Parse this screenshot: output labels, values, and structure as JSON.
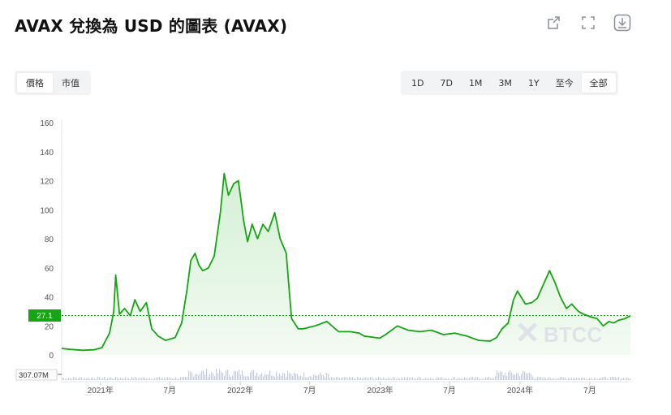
{
  "header": {
    "title": "AVAX 兌換為 USD 的圖表 (AVAX)",
    "icons": [
      "share-icon",
      "fullscreen-icon",
      "download-icon"
    ]
  },
  "view_toggle": {
    "items": [
      "價格",
      "市值"
    ],
    "active": "價格"
  },
  "range_tabs": {
    "items": [
      "1D",
      "7D",
      "1M",
      "3M",
      "1Y",
      "至今",
      "全部"
    ],
    "active": "全部"
  },
  "price_label": "27.1",
  "volume_label": "307.07M",
  "watermark": "BTCC",
  "colors": {
    "line": "#16a514",
    "fill": "#cfeecf",
    "label_bg": "#16a514",
    "volume": "#c8ccd4",
    "dotted": "#16a514"
  },
  "chart_data": {
    "type": "area",
    "title": "",
    "xlabel": "",
    "ylabel": "",
    "ylim": [
      0,
      160
    ],
    "yticks": [
      0,
      20,
      40,
      60,
      80,
      100,
      120,
      140,
      160
    ],
    "xtick_labels": [
      {
        "date": "2021-01",
        "label": "2021年"
      },
      {
        "date": "2021-07",
        "label": "7月"
      },
      {
        "date": "2022-01",
        "label": "2022年"
      },
      {
        "date": "2022-07",
        "label": "7月"
      },
      {
        "date": "2023-01",
        "label": "2023年"
      },
      {
        "date": "2023-07",
        "label": "7月"
      },
      {
        "date": "2024-01",
        "label": "2024年"
      },
      {
        "date": "2024-07",
        "label": "7月"
      }
    ],
    "xrange": [
      "2020-09-22",
      "2024-10-15"
    ],
    "current_value": 27.1,
    "series": [
      {
        "x": [
          "2020-09-22",
          "2020-10-15",
          "2020-11-15",
          "2020-12-15",
          "2021-01-05",
          "2021-01-25",
          "2021-02-05",
          "2021-02-10",
          "2021-02-20",
          "2021-03-05",
          "2021-03-20",
          "2021-04-01",
          "2021-04-15",
          "2021-05-01",
          "2021-05-15",
          "2021-06-01",
          "2021-06-20",
          "2021-07-15",
          "2021-08-01",
          "2021-08-15",
          "2021-08-25",
          "2021-09-05",
          "2021-09-15",
          "2021-09-25",
          "2021-10-10",
          "2021-10-25",
          "2021-11-10",
          "2021-11-20",
          "2021-12-01",
          "2021-12-15",
          "2021-12-27",
          "2022-01-10",
          "2022-01-20",
          "2022-02-01",
          "2022-02-15",
          "2022-03-01",
          "2022-03-15",
          "2022-04-01",
          "2022-04-15",
          "2022-05-01",
          "2022-05-10",
          "2022-05-15",
          "2022-06-01",
          "2022-06-15",
          "2022-07-15",
          "2022-08-15",
          "2022-09-15",
          "2022-10-15",
          "2022-11-08",
          "2022-11-20",
          "2022-12-31",
          "2023-01-15",
          "2023-02-15",
          "2023-03-15",
          "2023-04-15",
          "2023-05-15",
          "2023-06-15",
          "2023-07-15",
          "2023-08-15",
          "2023-09-15",
          "2023-10-15",
          "2023-11-01",
          "2023-11-15",
          "2023-12-01",
          "2023-12-15",
          "2023-12-25",
          "2024-01-15",
          "2024-02-01",
          "2024-02-15",
          "2024-03-01",
          "2024-03-18",
          "2024-04-01",
          "2024-04-15",
          "2024-05-01",
          "2024-05-15",
          "2024-06-01",
          "2024-06-15",
          "2024-07-05",
          "2024-07-20",
          "2024-08-05",
          "2024-08-20",
          "2024-09-01",
          "2024-09-15",
          "2024-10-01",
          "2024-10-15"
        ],
        "y": [
          4.5,
          3.8,
          3.2,
          3.5,
          5,
          15,
          30,
          55,
          28,
          32,
          27,
          38,
          30,
          36,
          18,
          13,
          10,
          12,
          22,
          45,
          65,
          70,
          62,
          58,
          60,
          68,
          98,
          125,
          110,
          118,
          120,
          92,
          78,
          90,
          80,
          90,
          85,
          98,
          80,
          70,
          40,
          25,
          18,
          18,
          20,
          23,
          16,
          16,
          15,
          13,
          11.5,
          14,
          20,
          17,
          16,
          17,
          14,
          15,
          13,
          10,
          9.5,
          12,
          18,
          22,
          38,
          44,
          35,
          36,
          39,
          48,
          58,
          50,
          40,
          32,
          35,
          30,
          28,
          26,
          25,
          20,
          23,
          22,
          24,
          25,
          27
        ]
      }
    ]
  }
}
